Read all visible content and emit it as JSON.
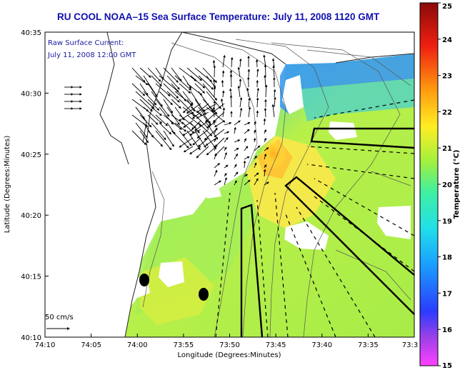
{
  "title": "RU COOL   NOAA–15  Sea Surface Temperature:  July 11, 2008 1120 GMT",
  "legend": {
    "line1": "Raw Surface Current:",
    "line2": "July 11, 2008 12:00 GMT"
  },
  "scale_arrow_label": "50 cm/s",
  "axes": {
    "xlabel": "Longitude (Degrees:Minutes)",
    "ylabel": "Latitude (Degrees:Minutes)",
    "x_ticks": [
      "74:10",
      "74:05",
      "74:00",
      "73:55",
      "73:50",
      "73:45",
      "73:40",
      "73:35",
      "73:3"
    ],
    "y_ticks": [
      "40:35",
      "40:30",
      "40:25",
      "40:20",
      "40:15",
      "40:10"
    ]
  },
  "colorbar": {
    "label": "Temperature (°C)",
    "min": 15,
    "max": 25,
    "ticks": [
      "25",
      "24",
      "23",
      "22",
      "21",
      "20",
      "19",
      "18",
      "17",
      "16",
      "15"
    ],
    "stops": [
      "#ff40ff",
      "#9a40e8",
      "#2a3cff",
      "#1aa0ff",
      "#22e0e8",
      "#40f0a0",
      "#a0f040",
      "#ffee22",
      "#ff9a10",
      "#f02010",
      "#8a0a0a"
    ]
  },
  "colors": {
    "ocean_warm": "#ffe24a",
    "ocean_mid": "#b8f04a",
    "ocean_cool": "#5cdca0",
    "ocean_cold": "#2a8cf0",
    "land": "#ffffff",
    "title": "#1010b0"
  }
}
